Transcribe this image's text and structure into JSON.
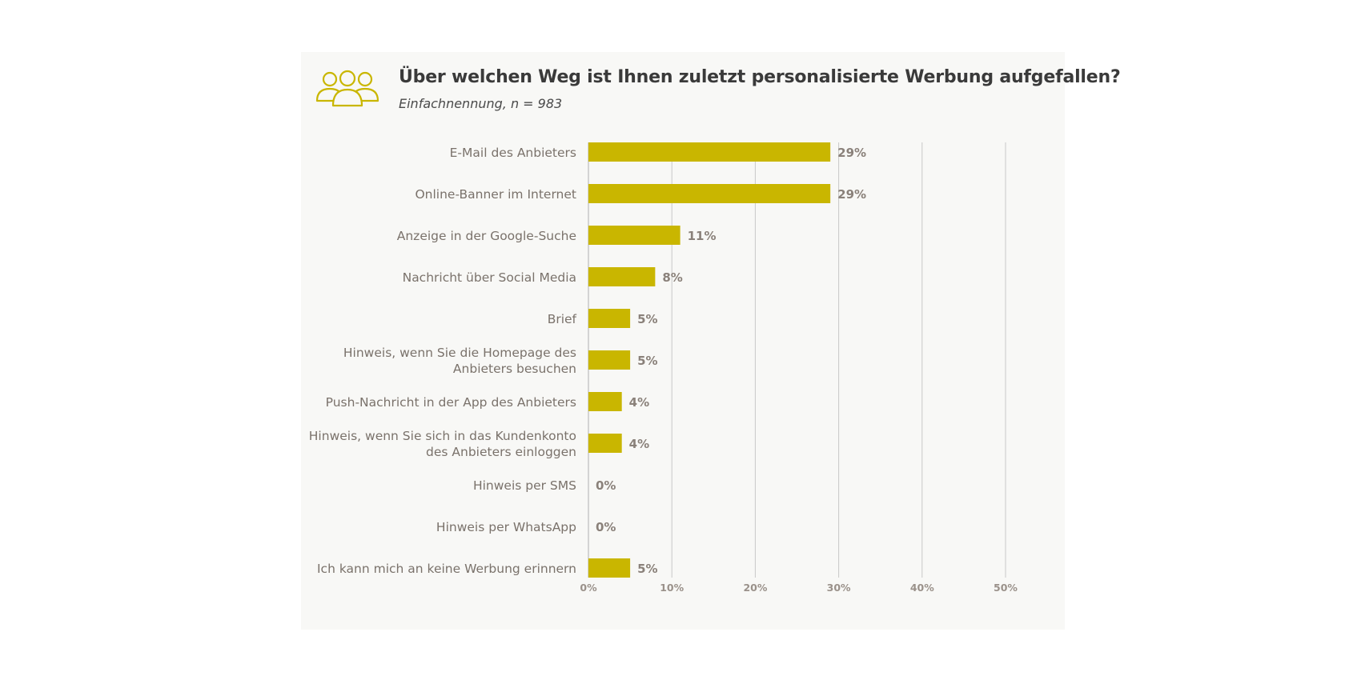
{
  "header": {
    "title": "Über welchen Weg ist Ihnen zuletzt personalisierte Werbung aufgefallen?",
    "subtitle": "Einfachnennung, n = 983",
    "icon": "people-group-icon"
  },
  "colors": {
    "bar": "#c9b600",
    "background": "#f8f8f6",
    "grid": "#c8c8c8"
  },
  "chart_data": {
    "type": "bar",
    "orientation": "horizontal",
    "title": "Über welchen Weg ist Ihnen zuletzt personalisierte Werbung aufgefallen?",
    "subtitle": "Einfachnennung, n = 983",
    "categories": [
      [
        "E-Mail des Anbieters"
      ],
      [
        "Online-Banner im Internet"
      ],
      [
        "Anzeige in der Google-Suche"
      ],
      [
        "Nachricht über Social Media"
      ],
      [
        "Brief"
      ],
      [
        "Hinweis, wenn Sie die Homepage des",
        "Anbieters besuchen"
      ],
      [
        "Push-Nachricht in der App des Anbieters"
      ],
      [
        "Hinweis, wenn Sie sich in das Kundenkonto",
        "des Anbieters einloggen"
      ],
      [
        "Hinweis per SMS"
      ],
      [
        "Hinweis per WhatsApp"
      ],
      [
        "Ich kann mich an keine Werbung erinnern"
      ]
    ],
    "values": [
      29,
      29,
      11,
      8,
      5,
      5,
      4,
      4,
      0,
      0,
      5
    ],
    "value_labels": [
      "29%",
      "29%",
      "11%",
      "8%",
      "5%",
      "5%",
      "4%",
      "4%",
      "0%",
      "0%",
      "5%"
    ],
    "xlim": [
      0,
      50
    ],
    "xticks": [
      0,
      10,
      20,
      30,
      40,
      50
    ],
    "xtick_labels": [
      "0%",
      "10%",
      "20%",
      "30%",
      "40%",
      "50%"
    ],
    "grid": true,
    "xlabel": "",
    "ylabel": ""
  }
}
